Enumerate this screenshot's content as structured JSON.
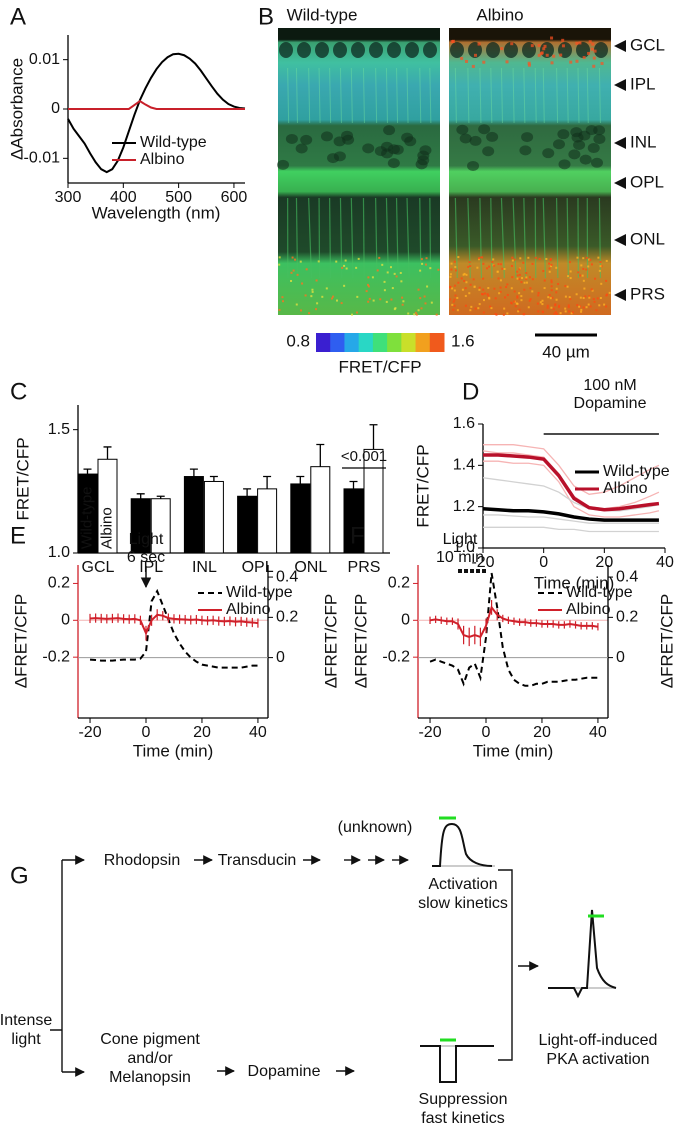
{
  "chart_data": [
    {
      "type": "line",
      "panel": "A",
      "y_label": "ΔAbsorbance",
      "x_label": "Wavelength (nm)",
      "x": [
        300,
        310,
        320,
        330,
        340,
        350,
        360,
        370,
        380,
        390,
        400,
        410,
        420,
        430,
        440,
        450,
        460,
        470,
        480,
        490,
        500,
        510,
        520,
        530,
        540,
        550,
        560,
        570,
        580,
        590,
        600,
        610,
        620
      ],
      "series": [
        {
          "name": "Wild-type",
          "color": "#000000",
          "values": [
            -0.002,
            -0.004,
            -0.0055,
            -0.007,
            -0.009,
            -0.0108,
            -0.0122,
            -0.0128,
            -0.0122,
            -0.0105,
            -0.0078,
            -0.0045,
            -0.0012,
            0.0018,
            0.0042,
            0.0063,
            0.0081,
            0.0095,
            0.0105,
            0.0111,
            0.0112,
            0.0109,
            0.0102,
            0.0092,
            0.0078,
            0.0062,
            0.0046,
            0.0031,
            0.0019,
            0.001,
            0.0005,
            0.0002,
            0.0001
          ]
        },
        {
          "name": "Albino",
          "color": "#c8202a",
          "values": [
            0,
            0,
            0,
            0,
            0,
            0,
            0,
            0,
            0,
            0,
            0,
            0,
            0.0008,
            0.0016,
            0.0009,
            0.0003,
            0,
            0,
            0,
            0,
            0,
            0,
            0,
            0,
            0,
            0,
            0,
            0,
            0,
            0,
            0,
            0,
            0
          ]
        }
      ],
      "xlim": [
        300,
        620
      ],
      "xticks": [
        300,
        400,
        500,
        600
      ],
      "ylim": [
        -0.015,
        0.015
      ],
      "yticks": [
        -0.01,
        0,
        0.01
      ]
    },
    {
      "type": "bar",
      "panel": "C",
      "y_label": "FRET/CFP",
      "categories": [
        "GCL",
        "IPL",
        "INL",
        "OPL",
        "ONL",
        "PRS"
      ],
      "series": [
        {
          "name": "Wild-type",
          "color": "#000000",
          "values": [
            1.32,
            1.22,
            1.31,
            1.23,
            1.28,
            1.26
          ],
          "errors": [
            0.02,
            0.02,
            0.03,
            0.03,
            0.03,
            0.03
          ]
        },
        {
          "name": "Albino",
          "color": "#ffffff",
          "values": [
            1.38,
            1.22,
            1.29,
            1.26,
            1.35,
            1.42
          ],
          "errors": [
            0.05,
            0.01,
            0.02,
            0.05,
            0.09,
            0.1
          ]
        }
      ],
      "annotation": "<0.001",
      "ylim": [
        1.0,
        1.6
      ],
      "yticks": [
        {
          "value": 1.0,
          "label": "1.0"
        },
        {
          "value": 1.5,
          "label": "1.5"
        }
      ]
    },
    {
      "type": "line",
      "panel": "D",
      "y_label": "FRET/CFP",
      "x_label": "Time (min)",
      "x": [
        -20,
        -15,
        -10,
        -5,
        0,
        5,
        10,
        15,
        20,
        25,
        30,
        35,
        38
      ],
      "traces": [
        {
          "color": "#f6b4b4",
          "values": [
            1.5,
            1.5,
            1.5,
            1.49,
            1.48,
            1.4,
            1.3,
            1.26,
            1.27,
            1.3,
            1.34,
            1.38,
            1.4
          ]
        },
        {
          "color": "#f6b4b4",
          "values": [
            1.42,
            1.42,
            1.41,
            1.41,
            1.4,
            1.32,
            1.2,
            1.16,
            1.15,
            1.15,
            1.16,
            1.17,
            1.18
          ]
        },
        {
          "color": "#f6b4b4",
          "values": [
            1.47,
            1.46,
            1.46,
            1.45,
            1.44,
            1.36,
            1.25,
            1.2,
            1.19,
            1.2,
            1.22,
            1.25,
            1.27
          ]
        },
        {
          "color": "#d2d2d2",
          "values": [
            1.34,
            1.33,
            1.32,
            1.31,
            1.3,
            1.27,
            1.22,
            1.19,
            1.18,
            1.18,
            1.19,
            1.2,
            1.21
          ]
        },
        {
          "color": "#d2d2d2",
          "values": [
            1.16,
            1.16,
            1.155,
            1.15,
            1.15,
            1.14,
            1.13,
            1.12,
            1.12,
            1.12,
            1.12,
            1.12,
            1.12
          ]
        },
        {
          "color": "#d2d2d2",
          "values": [
            1.1,
            1.1,
            1.1,
            1.1,
            1.1,
            1.09,
            1.09,
            1.08,
            1.08,
            1.08,
            1.08,
            1.08,
            1.08
          ]
        }
      ],
      "series": [
        {
          "name": "Wild-type",
          "color": "#000000",
          "values": [
            1.19,
            1.185,
            1.18,
            1.18,
            1.175,
            1.165,
            1.15,
            1.14,
            1.135,
            1.135,
            1.135,
            1.135,
            1.135
          ]
        },
        {
          "name": "Albino",
          "color": "#b8102a",
          "values": [
            1.45,
            1.45,
            1.445,
            1.44,
            1.43,
            1.35,
            1.24,
            1.195,
            1.185,
            1.19,
            1.2,
            1.21,
            1.215
          ]
        }
      ],
      "annotation": {
        "text": [
          "100 nM",
          "Dopamine"
        ],
        "span": [
          0,
          38
        ]
      },
      "xlim": [
        -20,
        40
      ],
      "xticks": [
        -20,
        0,
        20,
        40
      ],
      "ylim": [
        1.0,
        1.6
      ],
      "yticks": [
        {
          "value": 1.0,
          "label": "1.0"
        },
        {
          "value": 1.2,
          "label": "1.2"
        },
        {
          "value": 1.4,
          "label": "1.4"
        },
        {
          "value": 1.6,
          "label": "1.6"
        }
      ]
    },
    {
      "type": "line",
      "panel": "E",
      "y_label": "ΔFRET/CFP",
      "y2_label": "ΔFRET/CFP",
      "x_label": "Time (min)",
      "ycolor": "#d0202a",
      "zero_lines": true,
      "x": [
        -20,
        -18,
        -16,
        -14,
        -12,
        -10,
        -8,
        -6,
        -4,
        -2,
        0,
        2,
        4,
        6,
        8,
        10,
        12,
        14,
        16,
        18,
        20,
        22,
        24,
        26,
        28,
        30,
        32,
        34,
        36,
        38,
        40
      ],
      "series": [
        {
          "name": "Wild-type",
          "color": "#000000",
          "dash": true,
          "axis": "y2",
          "values": [
            -0.01,
            -0.012,
            -0.015,
            -0.015,
            -0.015,
            -0.012,
            -0.01,
            -0.01,
            -0.01,
            -0.005,
            0.03,
            0.28,
            0.33,
            0.26,
            0.19,
            0.12,
            0.07,
            0.03,
            0,
            -0.02,
            -0.035,
            -0.04,
            -0.045,
            -0.05,
            -0.05,
            -0.05,
            -0.05,
            -0.05,
            -0.045,
            -0.04,
            -0.04
          ]
        },
        {
          "name": "Albino",
          "color": "#d0202a",
          "values": [
            0.01,
            0.012,
            0.01,
            0.008,
            0.01,
            0.012,
            0.008,
            0.006,
            0.008,
            0,
            -0.07,
            0,
            0.03,
            0.025,
            0.012,
            0.008,
            0.006,
            0.004,
            0.002,
            0.004,
            0,
            -0.002,
            0,
            -0.004,
            -0.006,
            -0.004,
            -0.008,
            -0.006,
            -0.01,
            -0.012,
            -0.015
          ],
          "errors": [
            0.025,
            0.025,
            0.025,
            0.025,
            0.025,
            0.025,
            0.025,
            0.025,
            0.025,
            0.025,
            0.04,
            0.03,
            0.03,
            0.025,
            0.025,
            0.025,
            0.025,
            0.025,
            0.025,
            0.025,
            0.025,
            0.025,
            0.025,
            0.025,
            0.025,
            0.025,
            0.025,
            0.025,
            0.025,
            0.025,
            0.025
          ]
        }
      ],
      "annotation": {
        "text": [
          "Light",
          "6 sec"
        ],
        "at": 0
      },
      "xlim": [
        -24.3,
        43.6
      ],
      "xticks": [
        -20,
        0,
        20,
        40
      ],
      "ylim": [
        -0.53,
        0.3
      ],
      "yticks": [
        -0.2,
        0,
        0.2
      ],
      "y2lim": [
        -0.3,
        0.46
      ],
      "y2ticks": [
        0,
        0.2,
        0.4
      ]
    },
    {
      "type": "line",
      "panel": "F",
      "y_label": "ΔFRET/CFP",
      "y2_label": "ΔFRET/CFP",
      "x_label": "Time (min)",
      "ycolor": "#d0202a",
      "zero_lines": true,
      "x": [
        -20,
        -18,
        -16,
        -14,
        -12,
        -10,
        -8,
        -6,
        -4,
        -2,
        0,
        2,
        4,
        6,
        8,
        10,
        12,
        14,
        16,
        18,
        20,
        22,
        24,
        26,
        28,
        30,
        32,
        34,
        36,
        38,
        40
      ],
      "series": [
        {
          "name": "Wild-type",
          "color": "#000000",
          "dash": true,
          "axis": "y2",
          "values": [
            -0.02,
            -0.01,
            -0.02,
            -0.03,
            -0.04,
            -0.06,
            -0.13,
            -0.05,
            -0.03,
            -0.1,
            0.1,
            0.42,
            0.25,
            0.05,
            -0.06,
            -0.11,
            -0.13,
            -0.14,
            -0.14,
            -0.13,
            -0.13,
            -0.12,
            -0.12,
            -0.12,
            -0.115,
            -0.11,
            -0.11,
            -0.105,
            -0.1,
            -0.1,
            -0.1
          ]
        },
        {
          "name": "Albino",
          "color": "#d0202a",
          "values": [
            0,
            0.005,
            0,
            -0.005,
            -0.005,
            -0.02,
            -0.08,
            -0.09,
            -0.08,
            -0.09,
            -0.03,
            0.07,
            0.03,
            0.01,
            0,
            -0.005,
            -0.01,
            -0.01,
            -0.015,
            -0.015,
            -0.02,
            -0.02,
            -0.02,
            -0.025,
            -0.025,
            -0.02,
            -0.025,
            -0.03,
            -0.03,
            -0.03,
            -0.035
          ],
          "errors": [
            0.02,
            0.02,
            0.02,
            0.02,
            0.02,
            0.03,
            0.05,
            0.05,
            0.05,
            0.05,
            0.04,
            0.04,
            0.03,
            0.02,
            0.02,
            0.02,
            0.02,
            0.02,
            0.02,
            0.02,
            0.02,
            0.02,
            0.02,
            0.02,
            0.02,
            0.02,
            0.02,
            0.02,
            0.02,
            0.02,
            0.02
          ]
        }
      ],
      "annotation": {
        "text": [
          "Light",
          "10 min"
        ],
        "span": [
          -10,
          0
        ],
        "dashed": true
      },
      "xlim": [
        -24.3,
        43.6
      ],
      "xticks": [
        -20,
        0,
        20,
        40
      ],
      "ylim": [
        -0.53,
        0.3
      ],
      "yticks": [
        -0.2,
        0,
        0.2
      ],
      "y2lim": [
        -0.3,
        0.46
      ],
      "y2ticks": [
        0,
        0.2,
        0.4
      ]
    }
  ],
  "panel_b": {
    "panel": "B",
    "columns": [
      "Wild-type",
      "Albino"
    ],
    "layers": [
      "GCL",
      "IPL",
      "INL",
      "OPL",
      "ONL",
      "PRS"
    ],
    "colorbar": {
      "min": 0.8,
      "max": 1.6,
      "label": "FRET/CFP",
      "colors": [
        "#3a1fd0",
        "#2f5ef0",
        "#26a8e8",
        "#29d7c5",
        "#3fe07a",
        "#7fe03c",
        "#c9df2a",
        "#f2a01e",
        "#f05a1c"
      ]
    },
    "scale_bar": "40 µm"
  },
  "diagram": {
    "panel": "G",
    "source": [
      "Intense",
      "light"
    ],
    "rhodopsin": "Rhodopsin",
    "transducin": "Transducin",
    "unknown": "(unknown)",
    "activation": [
      "Activation",
      "slow kinetics"
    ],
    "cone": [
      "Cone pigment",
      "and/or",
      "Melanopsin"
    ],
    "dopamine": "Dopamine",
    "suppression": [
      "Suppression",
      "fast kinetics"
    ],
    "outcome": [
      "Light-off-induced",
      "PKA activation"
    ]
  }
}
